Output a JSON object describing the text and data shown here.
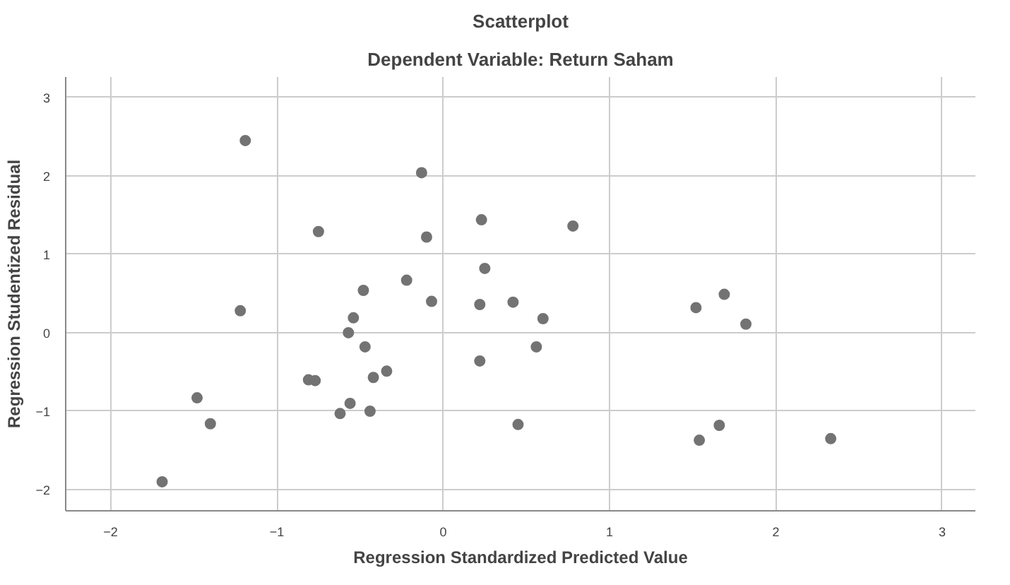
{
  "chart_data": {
    "type": "scatter",
    "title": "Scatterplot",
    "subtitle": "Dependent Variable: Return Saham",
    "xlabel": "Regression Standardized Predicted Value",
    "ylabel": "Regression Studentized Residual",
    "x": [
      -1.19,
      -0.13,
      -0.1,
      -0.75,
      -0.22,
      -0.48,
      -0.07,
      -1.22,
      -0.54,
      -0.57,
      -0.47,
      -0.34,
      -0.42,
      -0.81,
      -0.77,
      -1.48,
      -0.56,
      -0.44,
      -0.62,
      -1.4,
      -1.69,
      0.23,
      0.78,
      0.25,
      0.22,
      0.42,
      0.6,
      0.56,
      0.22,
      0.45,
      1.52,
      1.69,
      1.82,
      1.66,
      1.54,
      2.33
    ],
    "values": [
      2.45,
      2.04,
      1.22,
      1.29,
      0.67,
      0.54,
      0.4,
      0.28,
      0.19,
      0.0,
      -0.18,
      -0.49,
      -0.57,
      -0.6,
      -0.61,
      -0.83,
      -0.9,
      -1.0,
      -1.03,
      -1.16,
      -1.9,
      1.44,
      1.36,
      0.82,
      0.36,
      0.39,
      0.18,
      -0.18,
      -0.36,
      -1.17,
      0.32,
      0.49,
      0.11,
      -1.18,
      -1.37,
      -1.35
    ],
    "color": "#737373",
    "marker": "circle",
    "grid": true,
    "xlim": [
      -2.27,
      3.2
    ],
    "ylim": [
      -2.27,
      3.26
    ],
    "xticks": [
      -2,
      -1,
      0,
      1,
      2,
      3
    ],
    "yticks": [
      -2,
      -1,
      0,
      1,
      2,
      3
    ]
  }
}
